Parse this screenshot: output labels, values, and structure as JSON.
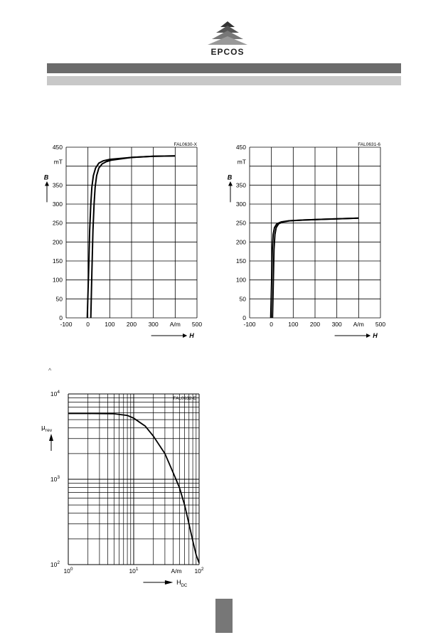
{
  "header": {
    "logo_text": "EPCOS",
    "brand_color": "#6b6b6b"
  },
  "misc": {
    "caret": "^"
  },
  "chart_data": [
    {
      "type": "line",
      "code": "FAL0630-X",
      "y_unit": "mT",
      "y_symbol": "B",
      "x_unit": "A/m",
      "x_symbol": "H",
      "xlim": [
        -100,
        500
      ],
      "ylim": [
        0,
        450
      ],
      "x_ticks": [
        -100,
        0,
        100,
        200,
        300,
        400,
        500
      ],
      "x_tick_labels": [
        "-100",
        "0",
        "100",
        "200",
        "300",
        "",
        "500"
      ],
      "y_ticks": [
        0,
        50,
        100,
        150,
        200,
        250,
        300,
        350,
        400,
        450
      ],
      "y_tick_labels": [
        "0",
        "50",
        "100",
        "150",
        "200",
        "250",
        "300",
        "350",
        "",
        "450"
      ],
      "grid": true,
      "series": [
        {
          "points": [
            [
              -3,
              0
            ],
            [
              3,
              120
            ],
            [
              8,
              230
            ],
            [
              13,
              300
            ],
            [
              18,
              345
            ],
            [
              25,
              375
            ],
            [
              35,
              395
            ],
            [
              50,
              408
            ],
            [
              70,
              414
            ],
            [
              100,
              418
            ],
            [
              200,
              423
            ],
            [
              300,
              426
            ],
            [
              400,
              427
            ]
          ]
        },
        {
          "points": [
            [
              13,
              0
            ],
            [
              18,
              120
            ],
            [
              23,
              230
            ],
            [
              28,
              300
            ],
            [
              33,
              345
            ],
            [
              40,
              375
            ],
            [
              50,
              395
            ],
            [
              65,
              406
            ],
            [
              85,
              412
            ],
            [
              110,
              416
            ],
            [
              200,
              423
            ],
            [
              300,
              426
            ],
            [
              400,
              427
            ]
          ]
        }
      ]
    },
    {
      "type": "line",
      "code": "FAL0631-6",
      "y_unit": "mT",
      "y_symbol": "B",
      "x_unit": "A/m",
      "x_symbol": "H",
      "xlim": [
        -100,
        500
      ],
      "ylim": [
        0,
        450
      ],
      "x_ticks": [
        -100,
        0,
        100,
        200,
        300,
        400,
        500
      ],
      "x_tick_labels": [
        "-100",
        "0",
        "100",
        "200",
        "300",
        "",
        "500"
      ],
      "y_ticks": [
        0,
        50,
        100,
        150,
        200,
        250,
        300,
        350,
        400,
        450
      ],
      "y_tick_labels": [
        "0",
        "50",
        "100",
        "150",
        "200",
        "250",
        "300",
        "350",
        "",
        "450"
      ],
      "grid": true,
      "series": [
        {
          "points": [
            [
              -3,
              0
            ],
            [
              1,
              100
            ],
            [
              4,
              180
            ],
            [
              8,
              220
            ],
            [
              14,
              238
            ],
            [
              25,
              248
            ],
            [
              45,
              253
            ],
            [
              80,
              256
            ],
            [
              150,
              258
            ],
            [
              250,
              260
            ],
            [
              350,
              262
            ],
            [
              400,
              263
            ]
          ]
        },
        {
          "points": [
            [
              5,
              0
            ],
            [
              9,
              100
            ],
            [
              12,
              180
            ],
            [
              16,
              220
            ],
            [
              22,
              238
            ],
            [
              33,
              248
            ],
            [
              53,
              253
            ],
            [
              85,
              256
            ],
            [
              150,
              258
            ],
            [
              250,
              260
            ],
            [
              350,
              262
            ],
            [
              400,
              263
            ]
          ]
        }
      ]
    },
    {
      "type": "line",
      "code": "FAL0632-E",
      "y_symbol": "μ",
      "y_subscript": "rev",
      "x_unit": "A/m",
      "x_symbol": "H",
      "x_subscript": "DC",
      "x_scale": "log",
      "y_scale": "log",
      "xlim": [
        1,
        100
      ],
      "ylim": [
        100,
        10000
      ],
      "x_tick_labels": [
        {
          "base": "10",
          "exp": "0"
        },
        {
          "base": "10",
          "exp": "1"
        },
        {
          "base": "10",
          "exp": "2"
        }
      ],
      "y_tick_labels": [
        {
          "base": "10",
          "exp": "2"
        },
        {
          "base": "10",
          "exp": "3"
        },
        {
          "base": "10",
          "exp": "4"
        }
      ],
      "grid": true,
      "series": [
        {
          "points": [
            [
              1,
              5900
            ],
            [
              2,
              5900
            ],
            [
              5,
              5850
            ],
            [
              8,
              5600
            ],
            [
              10,
              5200
            ],
            [
              15,
              4200
            ],
            [
              20,
              3200
            ],
            [
              30,
              2000
            ],
            [
              40,
              1200
            ],
            [
              50,
              800
            ],
            [
              60,
              500
            ],
            [
              70,
              300
            ],
            [
              80,
              190
            ],
            [
              90,
              130
            ],
            [
              100,
              105
            ]
          ]
        }
      ]
    }
  ]
}
